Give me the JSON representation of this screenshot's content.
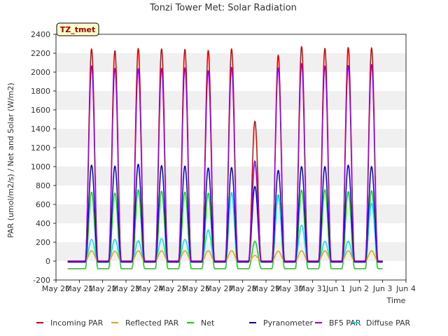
{
  "chart_data": {
    "type": "line",
    "title": "Tonzi Tower Met: Solar Radiation",
    "xlabel": "Time",
    "ylabel": "PAR (umol/m2/s) / Net and Solar (W/m2)",
    "ylim": [
      -200,
      2400
    ],
    "yticks": [
      -200,
      0,
      200,
      400,
      600,
      800,
      1000,
      1200,
      1400,
      1600,
      1800,
      2000,
      2200,
      2400
    ],
    "xlim": [
      20,
      35
    ],
    "xticks": [
      {
        "x": 20,
        "label": "May 20"
      },
      {
        "x": 21,
        "label": "May 21"
      },
      {
        "x": 22,
        "label": "May 22"
      },
      {
        "x": 23,
        "label": "May 23"
      },
      {
        "x": 24,
        "label": "May 24"
      },
      {
        "x": 25,
        "label": "May 25"
      },
      {
        "x": 26,
        "label": "May 26"
      },
      {
        "x": 27,
        "label": "May 27"
      },
      {
        "x": 28,
        "label": "May 28"
      },
      {
        "x": 29,
        "label": "May 29"
      },
      {
        "x": 30,
        "label": "May 30"
      },
      {
        "x": 31,
        "label": "May 31"
      },
      {
        "x": 32,
        "label": "Jun 1"
      },
      {
        "x": 33,
        "label": "Jun 2"
      },
      {
        "x": 34,
        "label": "Jun 3"
      },
      {
        "x": 35,
        "label": "Jun 4"
      }
    ],
    "annotation": "TZ_tmet",
    "grid": "horizontal bands",
    "legend_position": "bottom",
    "data_start": 20.5,
    "data_end": 34.0,
    "series": [
      {
        "name": "Incoming PAR",
        "color": "#dd0000",
        "night": 0,
        "peaks": [
          2245,
          2225,
          2250,
          2245,
          2240,
          2230,
          2245,
          1480,
          2180,
          2270,
          2250,
          2260,
          2255,
          2240
        ]
      },
      {
        "name": "Reflected PAR",
        "color": "#f0a000",
        "night": 0,
        "peaks": [
          110,
          105,
          110,
          110,
          110,
          110,
          110,
          60,
          105,
          110,
          110,
          110,
          110,
          110
        ]
      },
      {
        "name": "Net",
        "color": "#00dd00",
        "night": -80,
        "peaks": [
          730,
          720,
          755,
          740,
          730,
          720,
          725,
          210,
          700,
          750,
          755,
          735,
          745,
          730
        ]
      },
      {
        "name": "Pyranometer",
        "color": "#0000cc",
        "night": -10,
        "peaks": [
          1015,
          1005,
          1025,
          1010,
          1005,
          985,
          990,
          790,
          960,
          1000,
          1000,
          1015,
          1000,
          995
        ]
      },
      {
        "name": "BF5 PAR",
        "color": "#9900dd",
        "night": 0,
        "peaks": [
          2065,
          2040,
          2035,
          2040,
          2045,
          2015,
          2050,
          1060,
          2045,
          2090,
          2065,
          2070,
          2080,
          2065
        ]
      },
      {
        "name": "Diffuse PAR",
        "color": "#00e5ee",
        "night": -10,
        "peaks": [
          230,
          230,
          215,
          240,
          230,
          330,
          720,
          1020,
          680,
          380,
          210,
          210,
          610,
          240
        ]
      }
    ]
  }
}
